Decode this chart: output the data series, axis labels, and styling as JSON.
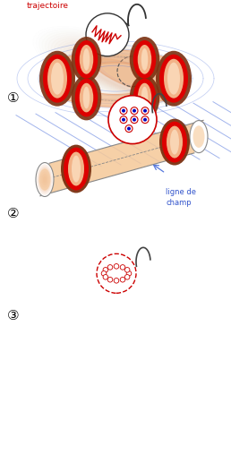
{
  "background": "#ffffff",
  "text_trajectoire": "trajectoire",
  "text_trajectoire_color": "#cc0000",
  "text_ligne_de_champ": "ligne de\nchamp",
  "text_ligne_de_champ_color": "#3355cc",
  "label1": "①",
  "label2": "②",
  "label3": "③",
  "plasma_color": "#f5c898",
  "plasma_color2": "#e8a070",
  "plasma_light": "#fce4c8",
  "ring_red": "#dd0000",
  "ring_brown": "#7a3010",
  "ring_fill": "#f5c898",
  "blue_line_color": "#5577dd",
  "particle_blue": "#0000bb",
  "particle_red": "#cc0000",
  "gray_arrow": "#666666",
  "gray_line": "#888888"
}
